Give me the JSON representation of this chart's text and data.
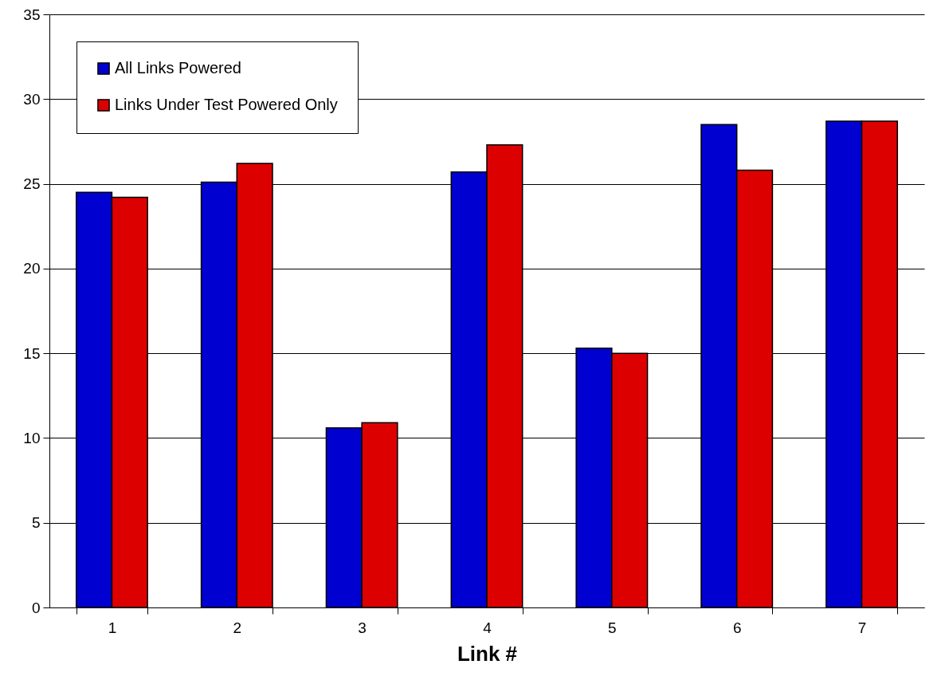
{
  "chart_data": {
    "type": "bar",
    "xlabel": "Link #",
    "categories": [
      "1",
      "2",
      "3",
      "4",
      "5",
      "6",
      "7"
    ],
    "series": [
      {
        "name": "All Links Powered",
        "color": "#0000d0",
        "values": [
          24.5,
          25.1,
          10.6,
          25.7,
          15.3,
          28.5,
          28.7
        ]
      },
      {
        "name": "Links Under Test Powered Only",
        "color": "#dd0000",
        "values": [
          24.2,
          26.2,
          10.9,
          27.3,
          15.0,
          25.8,
          28.7
        ]
      }
    ],
    "ylim": [
      0,
      35
    ],
    "yticks": [
      0,
      5,
      10,
      15,
      20,
      25,
      30,
      35
    ],
    "grid": "y",
    "legend": "top left"
  }
}
